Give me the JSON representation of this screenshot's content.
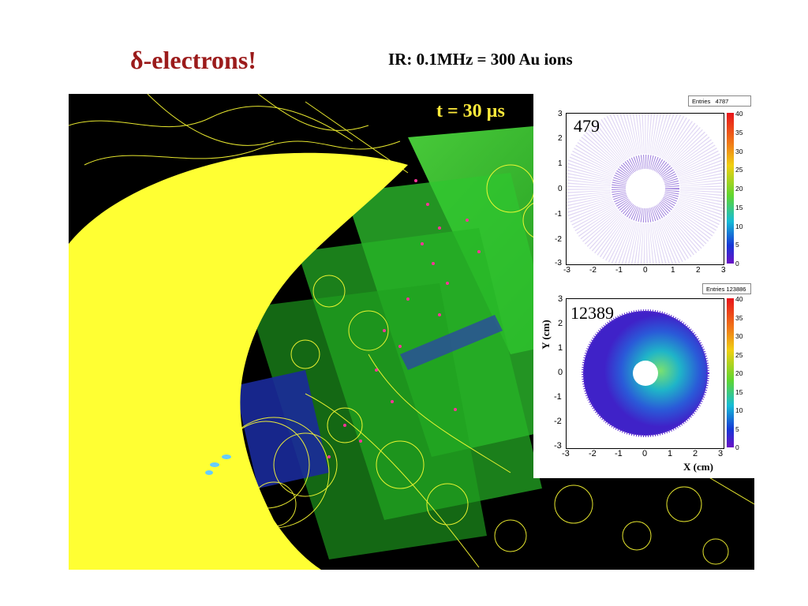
{
  "title": "δ-electrons!",
  "subtitle": "IR: 0.1MHz = 300 Au ions",
  "time_label": "t = 30 µs",
  "plots": [
    {
      "entries_label": "Entries",
      "entries_value": "4787",
      "count": "479",
      "x_ticks": [
        "-3",
        "-2",
        "-1",
        "0",
        "1",
        "2",
        "3"
      ],
      "y_ticks": [
        "3",
        "2",
        "1",
        "0",
        "-1",
        "-2",
        "-3"
      ],
      "color_ticks": [
        "40",
        "35",
        "30",
        "25",
        "20",
        "15",
        "10",
        "5",
        "0"
      ],
      "x_label": "",
      "y_label": ""
    },
    {
      "entries_label": "Entries",
      "entries_value": "123886",
      "count": "12389",
      "x_ticks": [
        "-3",
        "-2",
        "-1",
        "0",
        "1",
        "2",
        "3"
      ],
      "y_ticks": [
        "3",
        "2",
        "1",
        "0",
        "-1",
        "-2",
        "-3"
      ],
      "color_ticks": [
        "40",
        "35",
        "30",
        "25",
        "20",
        "15",
        "10",
        "5",
        "0"
      ],
      "x_label": "X (cm)",
      "y_label": "Y (cm)"
    }
  ],
  "colors": {
    "title": "#9b1b1b",
    "time_label": "#ffeb3b",
    "tracks": "#ffff33",
    "detector_planes": "#33dd33",
    "hits": "#ff3399"
  }
}
